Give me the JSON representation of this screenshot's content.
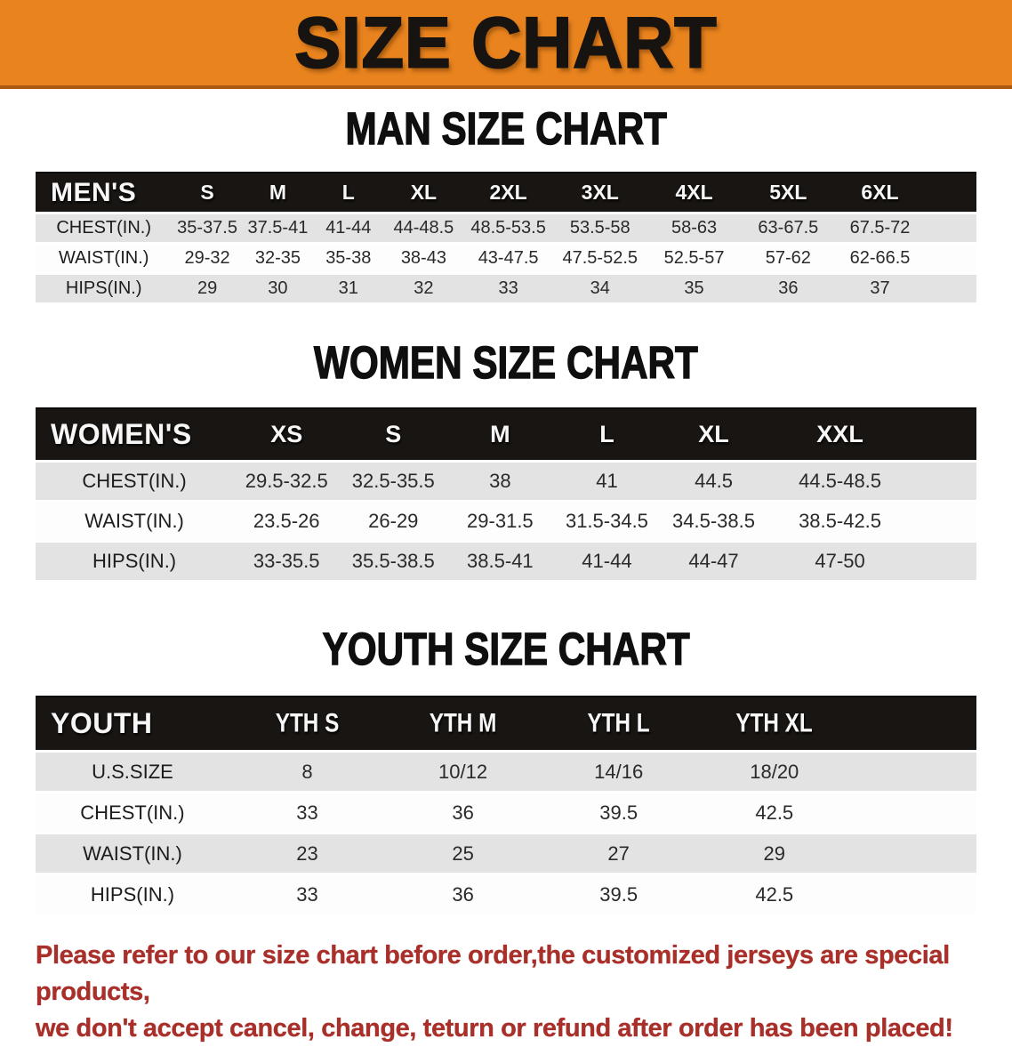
{
  "banner": {
    "title": "SIZE CHART",
    "bg_color": "#e8831e",
    "border_color": "#aa5810"
  },
  "colors": {
    "header_row_black": "#181512",
    "stripe_gray": "#e3e3e3",
    "stripe_white": "#fdfdfd",
    "notice_red": "#a9302a"
  },
  "sections": [
    {
      "id": "men",
      "heading": "MAN SIZE CHART",
      "label": "MEN'S",
      "sizes": [
        "S",
        "M",
        "L",
        "XL",
        "2XL",
        "3XL",
        "4XL",
        "5XL",
        "6XL"
      ],
      "rows": [
        {
          "label": "CHEST(IN.)",
          "values": [
            "35-37.5",
            "37.5-41",
            "41-44",
            "44-48.5",
            "48.5-53.5",
            "53.5-58",
            "58-63",
            "63-67.5",
            "67.5-72"
          ]
        },
        {
          "label": "WAIST(IN.)",
          "values": [
            "29-32",
            "32-35",
            "35-38",
            "38-43",
            "43-47.5",
            "47.5-52.5",
            "52.5-57",
            "57-62",
            "62-66.5"
          ]
        },
        {
          "label": "HIPS(IN.)",
          "values": [
            "29",
            "30",
            "31",
            "32",
            "33",
            "34",
            "35",
            "36",
            "37"
          ]
        }
      ]
    },
    {
      "id": "women",
      "heading": "WOMEN SIZE CHART",
      "label": "WOMEN'S",
      "sizes": [
        "XS",
        "S",
        "M",
        "L",
        "XL",
        "XXL"
      ],
      "rows": [
        {
          "label": "CHEST(IN.)",
          "values": [
            "29.5-32.5",
            "32.5-35.5",
            "38",
            "41",
            "44.5",
            "44.5-48.5"
          ]
        },
        {
          "label": "WAIST(IN.)",
          "values": [
            "23.5-26",
            "26-29",
            "29-31.5",
            "31.5-34.5",
            "34.5-38.5",
            "38.5-42.5"
          ]
        },
        {
          "label": "HIPS(IN.)",
          "values": [
            "33-35.5",
            "35.5-38.5",
            "38.5-41",
            "41-44",
            "44-47",
            "47-50"
          ]
        }
      ]
    },
    {
      "id": "youth",
      "heading": "YOUTH SIZE CHART",
      "label": "YOUTH",
      "sizes": [
        "YTH S",
        "YTH M",
        "YTH L",
        "YTH XL"
      ],
      "rows": [
        {
          "label": "U.S.SIZE",
          "values": [
            "8",
            "10/12",
            "14/16",
            "18/20"
          ]
        },
        {
          "label": "CHEST(IN.)",
          "values": [
            "33",
            "36",
            "39.5",
            "42.5"
          ]
        },
        {
          "label": "WAIST(IN.)",
          "values": [
            "23",
            "25",
            "27",
            "29"
          ]
        },
        {
          "label": "HIPS(IN.)",
          "values": [
            "33",
            "36",
            "39.5",
            "42.5"
          ]
        }
      ]
    }
  ],
  "footer": {
    "line1": "Please refer to our size chart before order,the customized jerseys are special products,",
    "line2": "we don't accept cancel, change, teturn or refund after order has been placed!"
  }
}
